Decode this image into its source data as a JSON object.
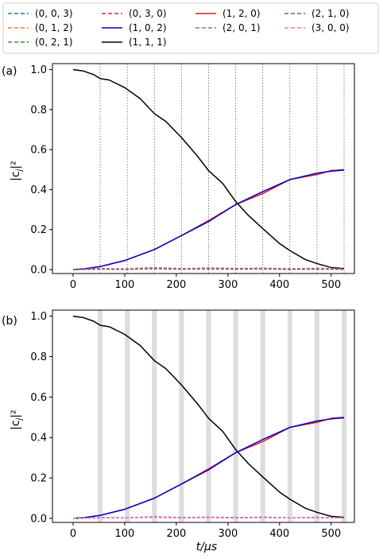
{
  "legend": {
    "items": [
      {
        "label": "(0, 0, 3)",
        "color": "#1f77b4",
        "dash": true
      },
      {
        "label": "(0, 3, 0)",
        "color": "#d62728",
        "dash": true
      },
      {
        "label": "(1, 2, 0)",
        "color": "#e41a1c",
        "dash": false
      },
      {
        "label": "(2, 1, 0)",
        "color": "#8c564b",
        "dash": true
      },
      {
        "label": "(0, 1, 2)",
        "color": "#ff7f0e",
        "dash": true
      },
      {
        "label": "(1, 0, 2)",
        "color": "#0000cc",
        "dash": false
      },
      {
        "label": "(2, 0, 1)",
        "color": "#9467bd",
        "dash": true
      },
      {
        "label": "(3, 0, 0)",
        "color": "#e377c2",
        "dash": true
      },
      {
        "label": "(0, 2, 1)",
        "color": "#2ca02c",
        "dash": true
      },
      {
        "label": "(1, 1, 1)",
        "color": "#000000",
        "dash": false
      }
    ]
  },
  "chart_data": [
    {
      "type": "line",
      "panel_label": "(a)",
      "xlabel": "",
      "ylabel": "|c_j|²",
      "xlim": [
        -40,
        545
      ],
      "ylim": [
        -0.02,
        1.03
      ],
      "xticks": [
        0,
        100,
        200,
        300,
        400,
        500
      ],
      "yticks": [
        0.0,
        0.2,
        0.4,
        0.6,
        0.8,
        1.0
      ],
      "ytick_labels": [
        "0.0",
        "0.2",
        "0.4",
        "0.6",
        "0.8",
        "1.0"
      ],
      "markers": {
        "style": "dotted-line",
        "x": [
          52.5,
          105,
          157.5,
          210,
          262.5,
          315,
          367.5,
          420,
          472.5,
          525
        ]
      },
      "series": [
        {
          "name": "(1, 1, 1)",
          "x": [
            0,
            20,
            40,
            52.5,
            70,
            100,
            130,
            157.5,
            180,
            210,
            240,
            262.5,
            290,
            315,
            340,
            367.5,
            400,
            420,
            450,
            472.5,
            500,
            525
          ],
          "y": [
            1.0,
            0.993,
            0.975,
            0.955,
            0.948,
            0.91,
            0.855,
            0.78,
            0.74,
            0.66,
            0.57,
            0.495,
            0.43,
            0.34,
            0.27,
            0.205,
            0.13,
            0.095,
            0.05,
            0.03,
            0.01,
            0.005
          ]
        },
        {
          "name": "(1, 2, 0)",
          "x": [
            0,
            20,
            52.5,
            100,
            157.5,
            210,
            262.5,
            315,
            367.5,
            420,
            472.5,
            500,
            525
          ],
          "y": [
            0.0,
            0.003,
            0.015,
            0.045,
            0.1,
            0.17,
            0.245,
            0.325,
            0.38,
            0.45,
            0.475,
            0.495,
            0.5
          ]
        },
        {
          "name": "(1, 0, 2)",
          "x": [
            0,
            20,
            52.5,
            100,
            157.5,
            210,
            262.5,
            315,
            367.5,
            420,
            472.5,
            500,
            525
          ],
          "y": [
            0.0,
            0.003,
            0.015,
            0.045,
            0.1,
            0.17,
            0.24,
            0.325,
            0.39,
            0.45,
            0.482,
            0.492,
            0.497
          ]
        },
        {
          "name": "(2, 0, 1)",
          "x": [
            0,
            52.5,
            100,
            157.5,
            210,
            262.5,
            315,
            367.5,
            420,
            472.5,
            525
          ],
          "y": [
            0.0,
            0.005,
            0.003,
            0.01,
            0.004,
            0.008,
            0.005,
            0.007,
            0.004,
            0.006,
            0.003
          ]
        },
        {
          "name": "(3, 0, 0)",
          "x": [
            0,
            52.5,
            100,
            157.5,
            210,
            262.5,
            315,
            367.5,
            420,
            472.5,
            525
          ],
          "y": [
            0.0,
            0.003,
            0.002,
            0.006,
            0.003,
            0.005,
            0.003,
            0.004,
            0.002,
            0.004,
            0.002
          ]
        },
        {
          "name": "(2, 1, 0)",
          "x": [
            0,
            52.5,
            100,
            157.5,
            210,
            262.5,
            315,
            367.5,
            420,
            472.5,
            525
          ],
          "y": [
            0.0,
            0.002,
            0.001,
            0.004,
            0.002,
            0.003,
            0.002,
            0.003,
            0.001,
            0.002,
            0.001
          ]
        }
      ]
    },
    {
      "type": "line",
      "panel_label": "(b)",
      "xlabel": "t/μs",
      "ylabel": "|c_j|²",
      "xlim": [
        -40,
        545
      ],
      "ylim": [
        -0.02,
        1.03
      ],
      "xticks": [
        0,
        100,
        200,
        300,
        400,
        500
      ],
      "yticks": [
        0.0,
        0.2,
        0.4,
        0.6,
        0.8,
        1.0
      ],
      "ytick_labels": [
        "0.0",
        "0.2",
        "0.4",
        "0.6",
        "0.8",
        "1.0"
      ],
      "markers": {
        "style": "gray-bands",
        "x": [
          52.5,
          105,
          157.5,
          210,
          262.5,
          315,
          367.5,
          420,
          472.5,
          525
        ]
      },
      "series": [
        {
          "name": "(1, 1, 1)",
          "x": [
            0,
            20,
            40,
            52.5,
            70,
            100,
            130,
            157.5,
            180,
            210,
            240,
            262.5,
            290,
            315,
            340,
            367.5,
            400,
            420,
            450,
            472.5,
            500,
            525
          ],
          "y": [
            1.0,
            0.993,
            0.975,
            0.955,
            0.948,
            0.91,
            0.855,
            0.78,
            0.74,
            0.66,
            0.57,
            0.495,
            0.43,
            0.34,
            0.27,
            0.205,
            0.13,
            0.095,
            0.05,
            0.03,
            0.01,
            0.005
          ]
        },
        {
          "name": "(1, 2, 0)",
          "x": [
            0,
            20,
            52.5,
            100,
            157.5,
            210,
            262.5,
            315,
            367.5,
            420,
            472.5,
            500,
            525
          ],
          "y": [
            0.0,
            0.003,
            0.015,
            0.045,
            0.1,
            0.17,
            0.245,
            0.325,
            0.38,
            0.45,
            0.475,
            0.495,
            0.5
          ]
        },
        {
          "name": "(1, 0, 2)",
          "x": [
            0,
            20,
            52.5,
            100,
            157.5,
            210,
            262.5,
            315,
            367.5,
            420,
            472.5,
            500,
            525
          ],
          "y": [
            0.0,
            0.003,
            0.015,
            0.045,
            0.1,
            0.17,
            0.24,
            0.325,
            0.39,
            0.45,
            0.482,
            0.492,
            0.497
          ]
        },
        {
          "name": "(2, 0, 1)",
          "x": [
            0,
            52.5,
            100,
            157.5,
            210,
            262.5,
            315,
            367.5,
            420,
            472.5,
            525
          ],
          "y": [
            0.0,
            0.004,
            0.003,
            0.008,
            0.004,
            0.006,
            0.004,
            0.006,
            0.003,
            0.005,
            0.003
          ]
        },
        {
          "name": "(3, 0, 0)",
          "x": [
            0,
            52.5,
            100,
            157.5,
            210,
            262.5,
            315,
            367.5,
            420,
            472.5,
            525
          ],
          "y": [
            0.0,
            0.002,
            0.002,
            0.005,
            0.002,
            0.004,
            0.002,
            0.004,
            0.002,
            0.003,
            0.002
          ]
        }
      ]
    }
  ]
}
